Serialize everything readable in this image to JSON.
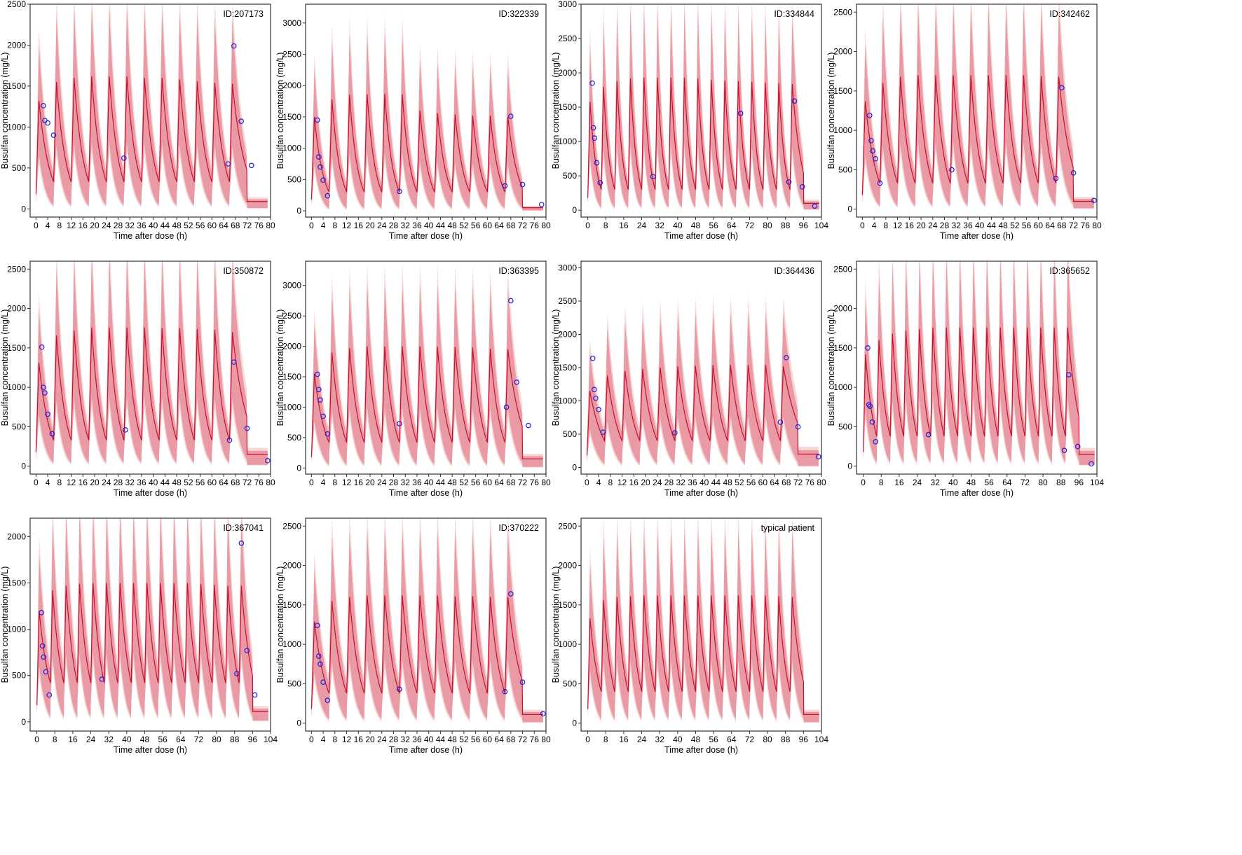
{
  "figure": {
    "colors": {
      "outer_band": "#f6d9d7",
      "inner_band": "#e99aa4",
      "median_line": "#c8102e",
      "observed_point": "#1f1fdc"
    },
    "dose_interval_h": 6
  },
  "chart_data": [
    {
      "type": "line",
      "id_label": "ID:207173",
      "xlabel": "Time after dose (h)",
      "ylabel": "Busulfan concentration (mg/L)",
      "xlim": [
        -2,
        80
      ],
      "ylim": [
        -100,
        2500
      ],
      "xticks": [
        0,
        4,
        8,
        12,
        16,
        20,
        24,
        28,
        32,
        36,
        40,
        44,
        48,
        52,
        56,
        60,
        64,
        68,
        72,
        76,
        80
      ],
      "yticks": [
        0,
        500,
        1000,
        1500,
        2000,
        2500
      ],
      "doses": 12,
      "median_peak": [
        1320,
        1550,
        1600,
        1620,
        1620,
        1620,
        1600,
        1600,
        1580,
        1560,
        1540,
        1530
      ],
      "median_trough": 330,
      "tail_end": 90,
      "observed": [
        [
          2.5,
          1260
        ],
        [
          3.0,
          1080
        ],
        [
          4.0,
          1050
        ],
        [
          6.0,
          900
        ],
        [
          30.0,
          620
        ],
        [
          65.5,
          550
        ],
        [
          67.5,
          1990
        ],
        [
          70.0,
          1070
        ],
        [
          73.5,
          530
        ]
      ]
    },
    {
      "type": "line",
      "id_label": "ID:322339",
      "xlabel": "Time after dose (h)",
      "ylabel": "Busulfan concentration (mg/L)",
      "xlim": [
        -2,
        80
      ],
      "ylim": [
        -100,
        3300
      ],
      "xticks": [
        0,
        4,
        8,
        12,
        16,
        20,
        24,
        28,
        32,
        36,
        40,
        44,
        48,
        52,
        56,
        60,
        64,
        68,
        72,
        76,
        80
      ],
      "yticks": [
        0,
        500,
        1000,
        1500,
        2000,
        2500,
        3000
      ],
      "doses": 12,
      "median_peak": [
        1500,
        1780,
        1850,
        1860,
        1870,
        1860,
        1600,
        1560,
        1540,
        1520,
        1520,
        1500
      ],
      "median_trough": 300,
      "tail_end": 50,
      "observed": [
        [
          2.0,
          1450
        ],
        [
          2.5,
          860
        ],
        [
          3.0,
          700
        ],
        [
          4.0,
          490
        ],
        [
          5.5,
          240
        ],
        [
          30.0,
          310
        ],
        [
          66.0,
          400
        ],
        [
          68.0,
          1510
        ],
        [
          72.0,
          420
        ],
        [
          78.5,
          100
        ]
      ]
    },
    {
      "type": "line",
      "id_label": "ID:334844",
      "xlabel": "Time after dose (h)",
      "ylabel": "Busulfan concentration (mg/L)",
      "xlim": [
        -3,
        104
      ],
      "ylim": [
        -100,
        3000
      ],
      "xticks": [
        0,
        8,
        16,
        24,
        32,
        40,
        48,
        56,
        64,
        72,
        80,
        88,
        96,
        104
      ],
      "yticks": [
        0,
        500,
        1000,
        1500,
        2000,
        2500,
        3000
      ],
      "doses": 16,
      "median_peak": [
        1580,
        1800,
        1880,
        1920,
        1930,
        1930,
        1930,
        1930,
        1920,
        1900,
        1890,
        1880,
        1870,
        1860,
        1850,
        1840
      ],
      "median_trough": 300,
      "tail_end": 100,
      "observed": [
        [
          2.0,
          1850
        ],
        [
          2.5,
          1200
        ],
        [
          3.0,
          1050
        ],
        [
          4.0,
          690
        ],
        [
          5.5,
          400
        ],
        [
          29.0,
          490
        ],
        [
          68.0,
          1410
        ],
        [
          89.5,
          410
        ],
        [
          92.0,
          1590
        ],
        [
          95.5,
          340
        ],
        [
          101.0,
          60
        ]
      ]
    },
    {
      "type": "line",
      "id_label": "ID:342462",
      "xlabel": "Time after dose (h)",
      "ylabel": "Busulfan concentration (mg/L)",
      "xlim": [
        -2,
        80
      ],
      "ylim": [
        -100,
        2600
      ],
      "xticks": [
        0,
        4,
        8,
        12,
        16,
        20,
        24,
        28,
        32,
        36,
        40,
        44,
        48,
        52,
        56,
        60,
        64,
        68,
        72,
        76,
        80
      ],
      "yticks": [
        0,
        500,
        1000,
        1500,
        2000,
        2500
      ],
      "doses": 12,
      "median_peak": [
        1370,
        1600,
        1680,
        1700,
        1700,
        1700,
        1700,
        1700,
        1700,
        1700,
        1690,
        1680
      ],
      "median_trough": 330,
      "tail_end": 100,
      "observed": [
        [
          2.5,
          1190
        ],
        [
          3.0,
          870
        ],
        [
          3.5,
          740
        ],
        [
          4.5,
          640
        ],
        [
          6.0,
          330
        ],
        [
          30.5,
          500
        ],
        [
          66.0,
          390
        ],
        [
          68.0,
          1540
        ],
        [
          72.0,
          460
        ],
        [
          79.0,
          110
        ]
      ]
    },
    {
      "type": "line",
      "id_label": "ID:350872",
      "xlabel": "Time after dose (h)",
      "ylabel": "Busulfan concentration (mg/L)",
      "xlim": [
        -2,
        80
      ],
      "ylim": [
        -100,
        2600
      ],
      "xticks": [
        0,
        4,
        8,
        12,
        16,
        20,
        24,
        28,
        32,
        36,
        40,
        44,
        48,
        52,
        56,
        60,
        64,
        68,
        72,
        76,
        80
      ],
      "yticks": [
        0,
        500,
        1000,
        1500,
        2000,
        2500
      ],
      "doses": 12,
      "median_peak": [
        1310,
        1660,
        1720,
        1760,
        1760,
        1760,
        1760,
        1750,
        1750,
        1740,
        1730,
        1700
      ],
      "median_trough": 330,
      "tail_end": 150,
      "observed": [
        [
          2.0,
          1510
        ],
        [
          2.5,
          1000
        ],
        [
          3.0,
          930
        ],
        [
          4.0,
          660
        ],
        [
          5.5,
          410
        ],
        [
          30.5,
          460
        ],
        [
          66.0,
          330
        ],
        [
          67.5,
          1320
        ],
        [
          72.0,
          480
        ],
        [
          79.0,
          70
        ]
      ]
    },
    {
      "type": "line",
      "id_label": "ID:363395",
      "xlabel": "Time after dose (h)",
      "ylabel": "Busulfan concentration (mg/L)",
      "xlim": [
        -2,
        80
      ],
      "ylim": [
        -100,
        3400
      ],
      "xticks": [
        0,
        4,
        8,
        12,
        16,
        20,
        24,
        28,
        32,
        36,
        40,
        44,
        48,
        52,
        56,
        60,
        64,
        68,
        72,
        76,
        80
      ],
      "yticks": [
        0,
        500,
        1000,
        1500,
        2000,
        2500,
        3000
      ],
      "doses": 12,
      "median_peak": [
        1550,
        1900,
        1970,
        2000,
        2000,
        2000,
        2000,
        1990,
        1990,
        1980,
        1960,
        1950
      ],
      "median_trough": 420,
      "tail_end": 150,
      "observed": [
        [
          2.0,
          1540
        ],
        [
          2.5,
          1290
        ],
        [
          3.0,
          1120
        ],
        [
          4.0,
          850
        ],
        [
          5.5,
          560
        ],
        [
          30.0,
          730
        ],
        [
          66.5,
          1000
        ],
        [
          68.0,
          2750
        ],
        [
          70.0,
          1410
        ],
        [
          74.0,
          700
        ]
      ]
    },
    {
      "type": "line",
      "id_label": "ID:364436",
      "xlabel": "Time after dose (h)",
      "ylabel": "Busulfan concentration (mg/L)",
      "xlim": [
        -2,
        80
      ],
      "ylim": [
        -100,
        3100
      ],
      "xticks": [
        0,
        4,
        8,
        12,
        16,
        20,
        24,
        28,
        32,
        36,
        40,
        44,
        48,
        52,
        56,
        60,
        64,
        68,
        72,
        76,
        80
      ],
      "yticks": [
        0,
        500,
        1000,
        1500,
        2000,
        2500,
        3000
      ],
      "doses": 12,
      "median_peak": [
        1150,
        1380,
        1450,
        1480,
        1500,
        1520,
        1530,
        1540,
        1540,
        1540,
        1540,
        1520
      ],
      "median_trough": 400,
      "tail_end": 200,
      "observed": [
        [
          2.0,
          1640
        ],
        [
          2.5,
          1170
        ],
        [
          3.0,
          1040
        ],
        [
          4.0,
          870
        ],
        [
          5.5,
          530
        ],
        [
          30.0,
          520
        ],
        [
          66.0,
          680
        ],
        [
          68.0,
          1650
        ],
        [
          72.0,
          610
        ],
        [
          79.0,
          160
        ]
      ]
    },
    {
      "type": "line",
      "id_label": "ID:365652",
      "xlabel": "Time after dose (h)",
      "ylabel": "Busulfan concentration (mg/L)",
      "xlim": [
        -3,
        104
      ],
      "ylim": [
        -100,
        2600
      ],
      "xticks": [
        0,
        8,
        16,
        24,
        32,
        40,
        48,
        56,
        64,
        72,
        80,
        88,
        96,
        104
      ],
      "yticks": [
        0,
        500,
        1000,
        1500,
        2000,
        2500
      ],
      "doses": 16,
      "median_peak": [
        1420,
        1600,
        1680,
        1720,
        1740,
        1760,
        1760,
        1760,
        1760,
        1760,
        1760,
        1760,
        1760,
        1760,
        1760,
        1760
      ],
      "median_trough": 380,
      "tail_end": 150,
      "observed": [
        [
          2.0,
          1500
        ],
        [
          2.5,
          780
        ],
        [
          3.0,
          760
        ],
        [
          4.0,
          560
        ],
        [
          5.5,
          310
        ],
        [
          29.0,
          400
        ],
        [
          89.5,
          200
        ],
        [
          91.5,
          1160
        ],
        [
          95.5,
          250
        ],
        [
          101.5,
          30
        ]
      ]
    },
    {
      "type": "line",
      "id_label": "ID:367041",
      "xlabel": "Time after dose (h)",
      "ylabel": "Busulfan concentration (mg/L)",
      "xlim": [
        -3,
        104
      ],
      "ylim": [
        -100,
        2200
      ],
      "xticks": [
        0,
        8,
        16,
        24,
        32,
        40,
        48,
        56,
        64,
        72,
        80,
        88,
        96,
        104
      ],
      "yticks": [
        0,
        500,
        1000,
        1500,
        2000
      ],
      "doses": 16,
      "median_peak": [
        1200,
        1420,
        1470,
        1490,
        1500,
        1500,
        1500,
        1500,
        1500,
        1500,
        1500,
        1500,
        1490,
        1480,
        1470,
        1470
      ],
      "median_trough": 420,
      "tail_end": 110,
      "observed": [
        [
          2.0,
          1180
        ],
        [
          2.5,
          820
        ],
        [
          3.0,
          700
        ],
        [
          4.0,
          540
        ],
        [
          5.5,
          290
        ],
        [
          29.0,
          460
        ],
        [
          89.0,
          520
        ],
        [
          91.0,
          1930
        ],
        [
          93.5,
          770
        ],
        [
          97.0,
          290
        ]
      ]
    },
    {
      "type": "line",
      "id_label": "ID:370222",
      "xlabel": "Time after dose (h)",
      "ylabel": "Busulfan concentration (mg/L)",
      "xlim": [
        -2,
        80
      ],
      "ylim": [
        -100,
        2600
      ],
      "xticks": [
        0,
        4,
        8,
        12,
        16,
        20,
        24,
        28,
        32,
        36,
        40,
        44,
        48,
        52,
        56,
        60,
        64,
        68,
        72,
        76,
        80
      ],
      "yticks": [
        0,
        500,
        1000,
        1500,
        2000,
        2500
      ],
      "doses": 12,
      "median_peak": [
        1290,
        1550,
        1600,
        1620,
        1620,
        1620,
        1620,
        1620,
        1610,
        1610,
        1600,
        1600
      ],
      "median_trough": 380,
      "tail_end": 110,
      "observed": [
        [
          2.0,
          1240
        ],
        [
          2.5,
          850
        ],
        [
          3.0,
          750
        ],
        [
          4.0,
          520
        ],
        [
          5.5,
          290
        ],
        [
          30.0,
          430
        ],
        [
          66.0,
          400
        ],
        [
          68.0,
          1640
        ],
        [
          72.0,
          520
        ],
        [
          79.0,
          120
        ]
      ]
    },
    {
      "type": "line",
      "id_label": "typical patient",
      "xlabel": "Time after dose (h)",
      "ylabel": "Busulfan concentration (mg/L)",
      "xlim": [
        -3,
        104
      ],
      "ylim": [
        -100,
        2600
      ],
      "xticks": [
        0,
        8,
        16,
        24,
        32,
        40,
        48,
        56,
        64,
        72,
        80,
        88,
        96,
        104
      ],
      "yticks": [
        0,
        500,
        1000,
        1500,
        2000,
        2500
      ],
      "doses": 16,
      "median_peak": [
        1330,
        1560,
        1600,
        1610,
        1620,
        1620,
        1620,
        1620,
        1620,
        1620,
        1620,
        1620,
        1620,
        1620,
        1610,
        1600
      ],
      "median_trough": 400,
      "tail_end": 110,
      "observed": []
    }
  ]
}
